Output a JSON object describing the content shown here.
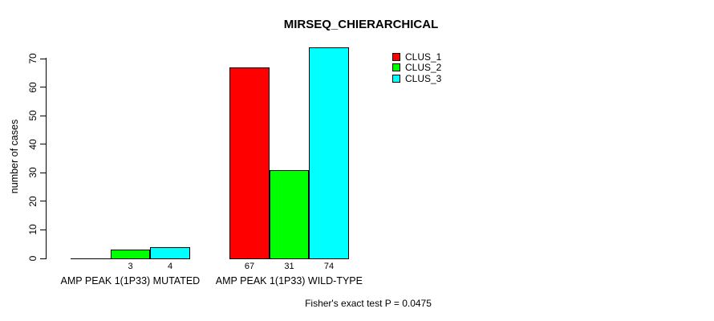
{
  "chart_data": {
    "type": "bar",
    "title": "MIRSEQ_CHIERARCHICAL",
    "xlabel": "",
    "ylabel": "number of cases",
    "ylim": [
      0,
      74.2
    ],
    "yticks": [
      0,
      10,
      20,
      30,
      40,
      50,
      60,
      70
    ],
    "grid": false,
    "legend_position": "top-right",
    "categories": [
      "AMP PEAK 1(1P33) MUTATED",
      "AMP PEAK 1(1P33) WILD-TYPE"
    ],
    "series": [
      {
        "name": "CLUS_1",
        "color": "#ff0000",
        "values": [
          0,
          67
        ],
        "bar_labels": [
          "",
          "67"
        ]
      },
      {
        "name": "CLUS_2",
        "color": "#00ff00",
        "values": [
          3,
          31
        ],
        "bar_labels": [
          "3",
          "31"
        ]
      },
      {
        "name": "CLUS_3",
        "color": "#00ffff",
        "values": [
          4,
          74
        ],
        "bar_labels": [
          "4",
          "74"
        ]
      }
    ],
    "annotation": "Fisher's exact test P = 0.0475"
  },
  "colors": {
    "background": "#ffffff",
    "axis": "#000000",
    "bar_border": "#000000"
  }
}
